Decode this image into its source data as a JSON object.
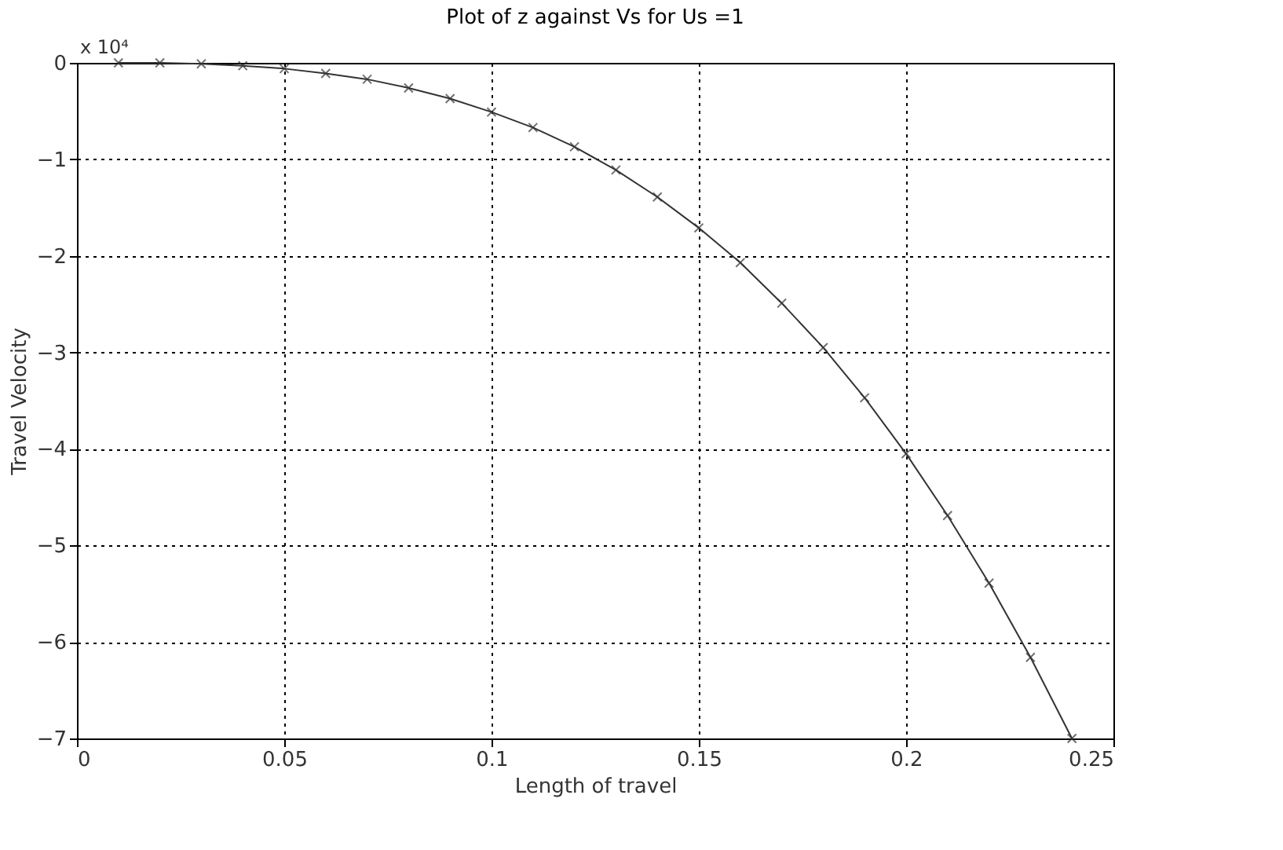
{
  "chart_data": {
    "type": "line",
    "title": "Plot of z against Vs for Us =1",
    "xlabel": "Length of travel",
    "ylabel": "Travel Velocity",
    "annotations": [
      "x 10⁴"
    ],
    "x": [
      0.01,
      0.02,
      0.03,
      0.04,
      0.05,
      0.06,
      0.07,
      0.08,
      0.09,
      0.1,
      0.11,
      0.12,
      0.13,
      0.14,
      0.15,
      0.16,
      0.17,
      0.18,
      0.19,
      0.2,
      0.21,
      0.22,
      0.23,
      0.24
    ],
    "series": [
      {
        "color": "#333333",
        "values": [
          0,
          0,
          -0.01,
          -0.03,
          -0.06,
          -0.11,
          -0.17,
          -0.26,
          -0.37,
          -0.51,
          -0.67,
          -0.87,
          -1.11,
          -1.39,
          -1.71,
          -2.07,
          -2.49,
          -2.95,
          -3.47,
          -4.05,
          -4.69,
          -5.39,
          -6.16,
          -7.0
        ]
      }
    ],
    "xlim": [
      0,
      0.25
    ],
    "xticks": [
      0,
      0.05,
      0.1,
      0.15,
      0.2,
      0.25
    ],
    "ylim": [
      -7,
      0
    ],
    "yticks": [
      -7,
      -6,
      -5,
      -4,
      -3,
      -2,
      -1,
      0
    ],
    "grid": true,
    "marker": "cross",
    "line_style": "solid"
  }
}
